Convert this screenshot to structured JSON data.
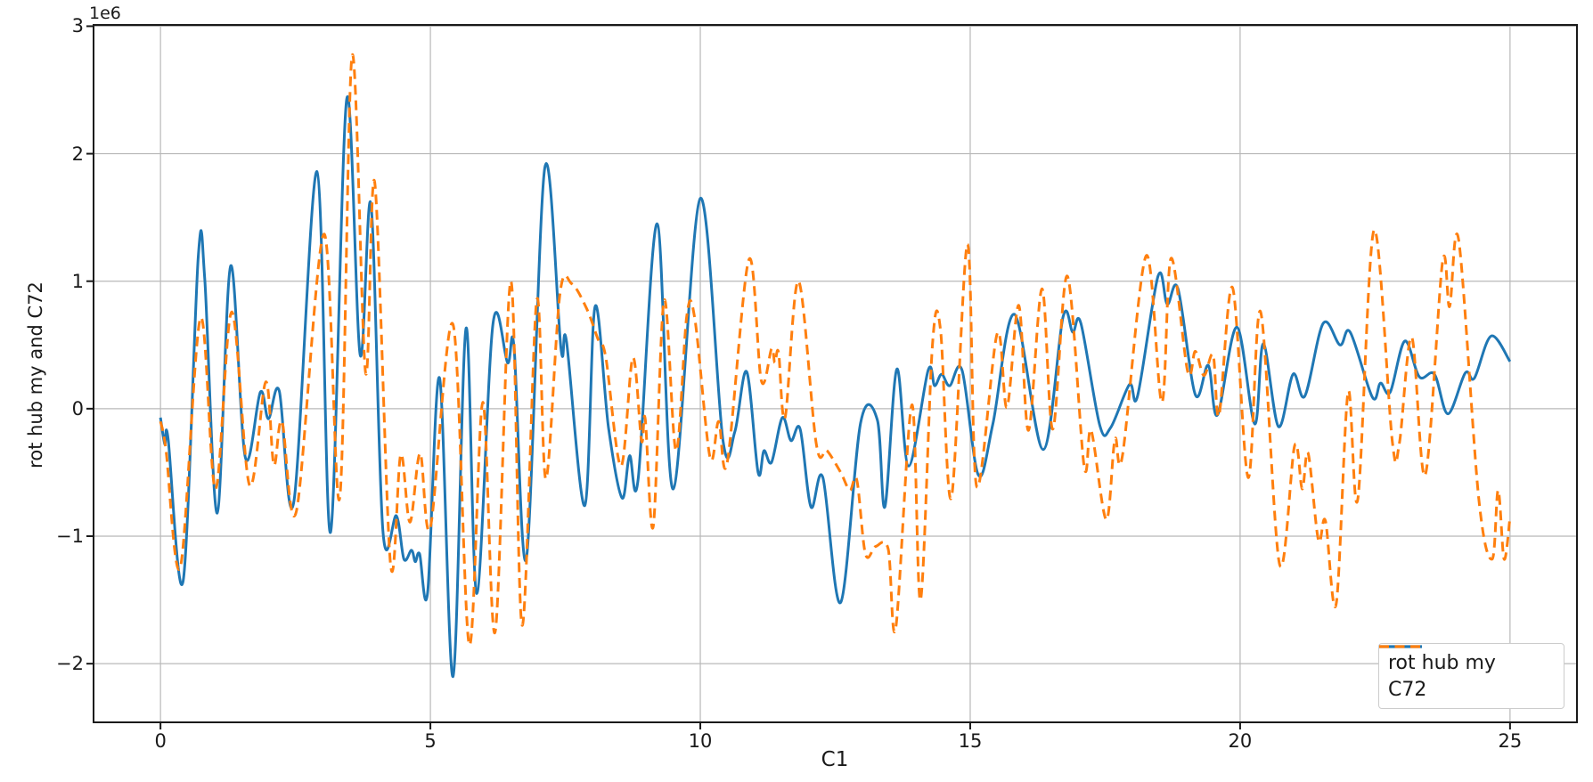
{
  "figure": {
    "background": "#ffffff",
    "text_color": "#1a1a1a"
  },
  "chart_data": {
    "type": "line",
    "title": "",
    "xlabel": "C1",
    "ylabel": "rot hub my and C72",
    "y_axis_offset_text": "1e6",
    "y_unit": "values are in multiples of 1e6",
    "xlim": [
      -1.24,
      26.24
    ],
    "ylim": [
      -2.46,
      3.01
    ],
    "x_ticks": {
      "values": [
        0,
        5,
        10,
        15,
        20,
        25
      ],
      "labels": [
        "0",
        "5",
        "10",
        "15",
        "20",
        "25"
      ]
    },
    "y_ticks": {
      "values": [
        -2,
        -1,
        0,
        1,
        2,
        3
      ],
      "labels": [
        "−2",
        "−1",
        "0",
        "1",
        "2",
        "3"
      ]
    },
    "grid": true,
    "grid_color": "#b8b8b8",
    "spine_color": "#1a1a1a",
    "legend": {
      "position": "lower right"
    },
    "series": [
      {
        "name": "rot hub my",
        "color": "#1f77b4",
        "line_style": "solid",
        "line_width": 3,
        "points": [
          [
            0.0,
            -0.07
          ],
          [
            0.08,
            -0.28
          ],
          [
            0.14,
            -0.23
          ],
          [
            0.42,
            -1.35
          ],
          [
            0.7,
            1.19
          ],
          [
            0.82,
            1.02
          ],
          [
            1.05,
            -0.82
          ],
          [
            1.3,
            1.12
          ],
          [
            1.57,
            -0.38
          ],
          [
            1.85,
            0.13
          ],
          [
            2.0,
            -0.08
          ],
          [
            2.2,
            0.14
          ],
          [
            2.47,
            -0.73
          ],
          [
            2.9,
            1.86
          ],
          [
            3.15,
            -0.97
          ],
          [
            3.45,
            2.43
          ],
          [
            3.7,
            0.42
          ],
          [
            3.9,
            1.6
          ],
          [
            4.12,
            -0.96
          ],
          [
            4.37,
            -0.84
          ],
          [
            4.51,
            -1.18
          ],
          [
            4.65,
            -1.11
          ],
          [
            4.72,
            -1.2
          ],
          [
            4.8,
            -1.14
          ],
          [
            4.95,
            -1.44
          ],
          [
            5.17,
            0.24
          ],
          [
            5.42,
            -2.1
          ],
          [
            5.66,
            0.63
          ],
          [
            5.86,
            -1.45
          ],
          [
            6.16,
            0.67
          ],
          [
            6.43,
            0.36
          ],
          [
            6.55,
            0.48
          ],
          [
            6.78,
            -1.17
          ],
          [
            7.12,
            1.89
          ],
          [
            7.42,
            0.47
          ],
          [
            7.52,
            0.53
          ],
          [
            7.86,
            -0.76
          ],
          [
            8.05,
            0.8
          ],
          [
            8.3,
            -0.15
          ],
          [
            8.55,
            -0.7
          ],
          [
            8.69,
            -0.37
          ],
          [
            8.85,
            -0.55
          ],
          [
            9.2,
            1.45
          ],
          [
            9.5,
            -0.63
          ],
          [
            10.0,
            1.65
          ],
          [
            10.42,
            -0.25
          ],
          [
            10.64,
            -0.18
          ],
          [
            10.86,
            0.29
          ],
          [
            11.07,
            -0.5
          ],
          [
            11.18,
            -0.33
          ],
          [
            11.32,
            -0.42
          ],
          [
            11.52,
            -0.07
          ],
          [
            11.68,
            -0.25
          ],
          [
            11.85,
            -0.16
          ],
          [
            12.05,
            -0.77
          ],
          [
            12.27,
            -0.54
          ],
          [
            12.6,
            -1.52
          ],
          [
            12.97,
            -0.11
          ],
          [
            13.28,
            -0.09
          ],
          [
            13.42,
            -0.77
          ],
          [
            13.64,
            0.31
          ],
          [
            13.86,
            -0.45
          ],
          [
            14.22,
            0.3
          ],
          [
            14.34,
            0.18
          ],
          [
            14.47,
            0.27
          ],
          [
            14.62,
            0.18
          ],
          [
            14.85,
            0.3
          ],
          [
            15.15,
            -0.52
          ],
          [
            15.42,
            -0.12
          ],
          [
            15.82,
            0.74
          ],
          [
            16.35,
            -0.32
          ],
          [
            16.72,
            0.72
          ],
          [
            16.9,
            0.6
          ],
          [
            17.05,
            0.67
          ],
          [
            17.4,
            -0.13
          ],
          [
            17.6,
            -0.15
          ],
          [
            17.95,
            0.19
          ],
          [
            18.1,
            0.1
          ],
          [
            18.48,
            1.04
          ],
          [
            18.65,
            0.82
          ],
          [
            18.85,
            0.94
          ],
          [
            19.17,
            0.11
          ],
          [
            19.41,
            0.34
          ],
          [
            19.58,
            -0.05
          ],
          [
            19.94,
            0.64
          ],
          [
            20.27,
            -0.12
          ],
          [
            20.43,
            0.51
          ],
          [
            20.71,
            -0.14
          ],
          [
            20.98,
            0.27
          ],
          [
            21.2,
            0.1
          ],
          [
            21.54,
            0.67
          ],
          [
            21.85,
            0.5
          ],
          [
            22.04,
            0.6
          ],
          [
            22.45,
            0.09
          ],
          [
            22.6,
            0.2
          ],
          [
            22.78,
            0.13
          ],
          [
            23.05,
            0.53
          ],
          [
            23.32,
            0.25
          ],
          [
            23.6,
            0.27
          ],
          [
            23.85,
            -0.04
          ],
          [
            24.17,
            0.28
          ],
          [
            24.34,
            0.24
          ],
          [
            24.65,
            0.57
          ],
          [
            25.0,
            0.37
          ]
        ]
      },
      {
        "name": "C72",
        "color": "#ff7f0e",
        "line_style": "dashed",
        "line_width": 3,
        "points": [
          [
            0.0,
            -0.1
          ],
          [
            0.1,
            -0.32
          ],
          [
            0.37,
            -1.24
          ],
          [
            0.74,
            0.71
          ],
          [
            1.02,
            -0.63
          ],
          [
            1.32,
            0.76
          ],
          [
            1.65,
            -0.6
          ],
          [
            1.95,
            0.21
          ],
          [
            2.1,
            -0.44
          ],
          [
            2.25,
            -0.1
          ],
          [
            2.52,
            -0.8
          ],
          [
            3.03,
            1.37
          ],
          [
            3.32,
            -0.7
          ],
          [
            3.55,
            2.77
          ],
          [
            3.8,
            0.28
          ],
          [
            3.97,
            1.77
          ],
          [
            4.26,
            -1.21
          ],
          [
            4.45,
            -0.36
          ],
          [
            4.62,
            -0.89
          ],
          [
            4.81,
            -0.35
          ],
          [
            5.0,
            -0.93
          ],
          [
            5.42,
            0.66
          ],
          [
            5.72,
            -1.85
          ],
          [
            5.97,
            0.05
          ],
          [
            6.2,
            -1.75
          ],
          [
            6.49,
            1.0
          ],
          [
            6.7,
            -1.7
          ],
          [
            6.97,
            0.85
          ],
          [
            7.14,
            -0.55
          ],
          [
            7.4,
            0.9
          ],
          [
            7.62,
            0.98
          ],
          [
            7.9,
            0.78
          ],
          [
            8.1,
            0.55
          ],
          [
            8.25,
            0.4
          ],
          [
            8.53,
            -0.45
          ],
          [
            8.75,
            0.4
          ],
          [
            8.91,
            -0.25
          ],
          [
            8.98,
            -0.08
          ],
          [
            9.13,
            -0.92
          ],
          [
            9.33,
            0.85
          ],
          [
            9.55,
            -0.33
          ],
          [
            9.75,
            0.73
          ],
          [
            9.9,
            0.7
          ],
          [
            10.18,
            -0.38
          ],
          [
            10.34,
            -0.1
          ],
          [
            10.5,
            -0.42
          ],
          [
            10.9,
            1.17
          ],
          [
            11.13,
            0.22
          ],
          [
            11.32,
            0.47
          ],
          [
            11.38,
            0.36
          ],
          [
            11.45,
            0.44
          ],
          [
            11.57,
            -0.07
          ],
          [
            11.82,
            1.0
          ],
          [
            12.15,
            -0.28
          ],
          [
            12.35,
            -0.33
          ],
          [
            12.6,
            -0.5
          ],
          [
            12.77,
            -0.64
          ],
          [
            12.9,
            -0.56
          ],
          [
            13.06,
            -1.14
          ],
          [
            13.25,
            -1.08
          ],
          [
            13.48,
            -1.1
          ],
          [
            13.62,
            -1.72
          ],
          [
            13.92,
            0.03
          ],
          [
            14.08,
            -1.5
          ],
          [
            14.3,
            0.5
          ],
          [
            14.45,
            0.62
          ],
          [
            14.65,
            -0.7
          ],
          [
            14.95,
            1.29
          ],
          [
            15.12,
            -0.61
          ],
          [
            15.5,
            0.59
          ],
          [
            15.68,
            0.01
          ],
          [
            15.9,
            0.81
          ],
          [
            16.08,
            -0.17
          ],
          [
            16.33,
            0.94
          ],
          [
            16.53,
            -0.16
          ],
          [
            16.8,
            1.04
          ],
          [
            17.11,
            -0.45
          ],
          [
            17.24,
            -0.17
          ],
          [
            17.52,
            -0.87
          ],
          [
            17.68,
            -0.24
          ],
          [
            17.82,
            -0.37
          ],
          [
            18.26,
            1.2
          ],
          [
            18.55,
            0.05
          ],
          [
            18.72,
            1.18
          ],
          [
            19.03,
            0.29
          ],
          [
            19.17,
            0.45
          ],
          [
            19.33,
            0.26
          ],
          [
            19.5,
            0.42
          ],
          [
            19.61,
            -0.05
          ],
          [
            19.86,
            0.95
          ],
          [
            20.15,
            -0.54
          ],
          [
            20.38,
            0.76
          ],
          [
            20.73,
            -1.22
          ],
          [
            21.01,
            -0.29
          ],
          [
            21.15,
            -0.63
          ],
          [
            21.26,
            -0.35
          ],
          [
            21.45,
            -1.03
          ],
          [
            21.58,
            -0.88
          ],
          [
            21.78,
            -1.53
          ],
          [
            22.0,
            0.13
          ],
          [
            22.18,
            -0.71
          ],
          [
            22.48,
            1.4
          ],
          [
            22.82,
            -0.26
          ],
          [
            22.95,
            -0.27
          ],
          [
            23.18,
            0.56
          ],
          [
            23.43,
            -0.52
          ],
          [
            23.75,
            1.15
          ],
          [
            23.88,
            0.8
          ],
          [
            24.05,
            1.32
          ],
          [
            24.42,
            -0.7
          ],
          [
            24.67,
            -1.18
          ],
          [
            24.78,
            -0.64
          ],
          [
            24.89,
            -1.18
          ],
          [
            25.0,
            -0.85
          ]
        ]
      }
    ]
  }
}
